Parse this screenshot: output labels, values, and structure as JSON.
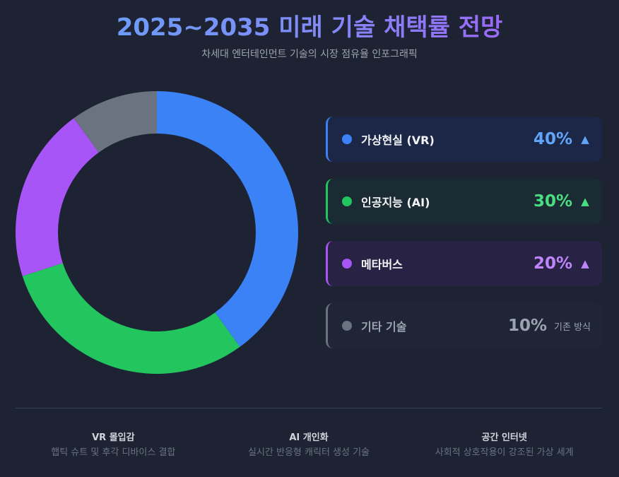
{
  "header": {
    "title": "2025~2035 미래 기술 채택률 전망",
    "subtitle": "차세대 엔터테인먼트 기술의 시장 점유율 인포그래픽"
  },
  "legend": [
    {
      "label": "가상현실 (VR)",
      "value": "40%",
      "trend": "▲",
      "note": "",
      "color": "#3b82f6",
      "value_color": "#60a5fa",
      "bg": "#1c2748",
      "muted": false
    },
    {
      "label": "인공지능 (AI)",
      "value": "30%",
      "trend": "▲",
      "note": "",
      "color": "#22c55e",
      "value_color": "#4ade80",
      "bg": "#1b2b33",
      "muted": false
    },
    {
      "label": "메타버스",
      "value": "20%",
      "trend": "▲",
      "note": "",
      "color": "#a855f7",
      "value_color": "#c084fc",
      "bg": "#282345",
      "muted": false
    },
    {
      "label": "기타 기술",
      "value": "10%",
      "trend": "",
      "note": "기존 방식",
      "color": "#6b7280",
      "value_color": "#9ca3af",
      "bg": "#1f2436",
      "muted": true
    }
  ],
  "features": [
    {
      "title": "VR 몰입감",
      "desc": "햅틱 슈트 및 후각 디바이스 결합"
    },
    {
      "title": "AI 개인화",
      "desc": "실시간 반응형 캐릭터 생성 기술"
    },
    {
      "title": "공간 인터넷",
      "desc": "사회적 상호작용이 강조된 가상 세계"
    }
  ],
  "chart_data": {
    "type": "pie",
    "subtype": "donut",
    "title": "2025~2035 미래 기술 채택률 전망",
    "subtitle": "차세대 엔터테인먼트 기술의 시장 점유율 인포그래픽",
    "categories": [
      "가상현실 (VR)",
      "인공지능 (AI)",
      "메타버스",
      "기타 기술"
    ],
    "values": [
      40,
      30,
      20,
      10
    ],
    "colors": [
      "#3b82f6",
      "#22c55e",
      "#a855f7",
      "#6b7280"
    ],
    "start_angle": "12 o'clock, clockwise",
    "legend_position": "right",
    "unit": "%"
  }
}
